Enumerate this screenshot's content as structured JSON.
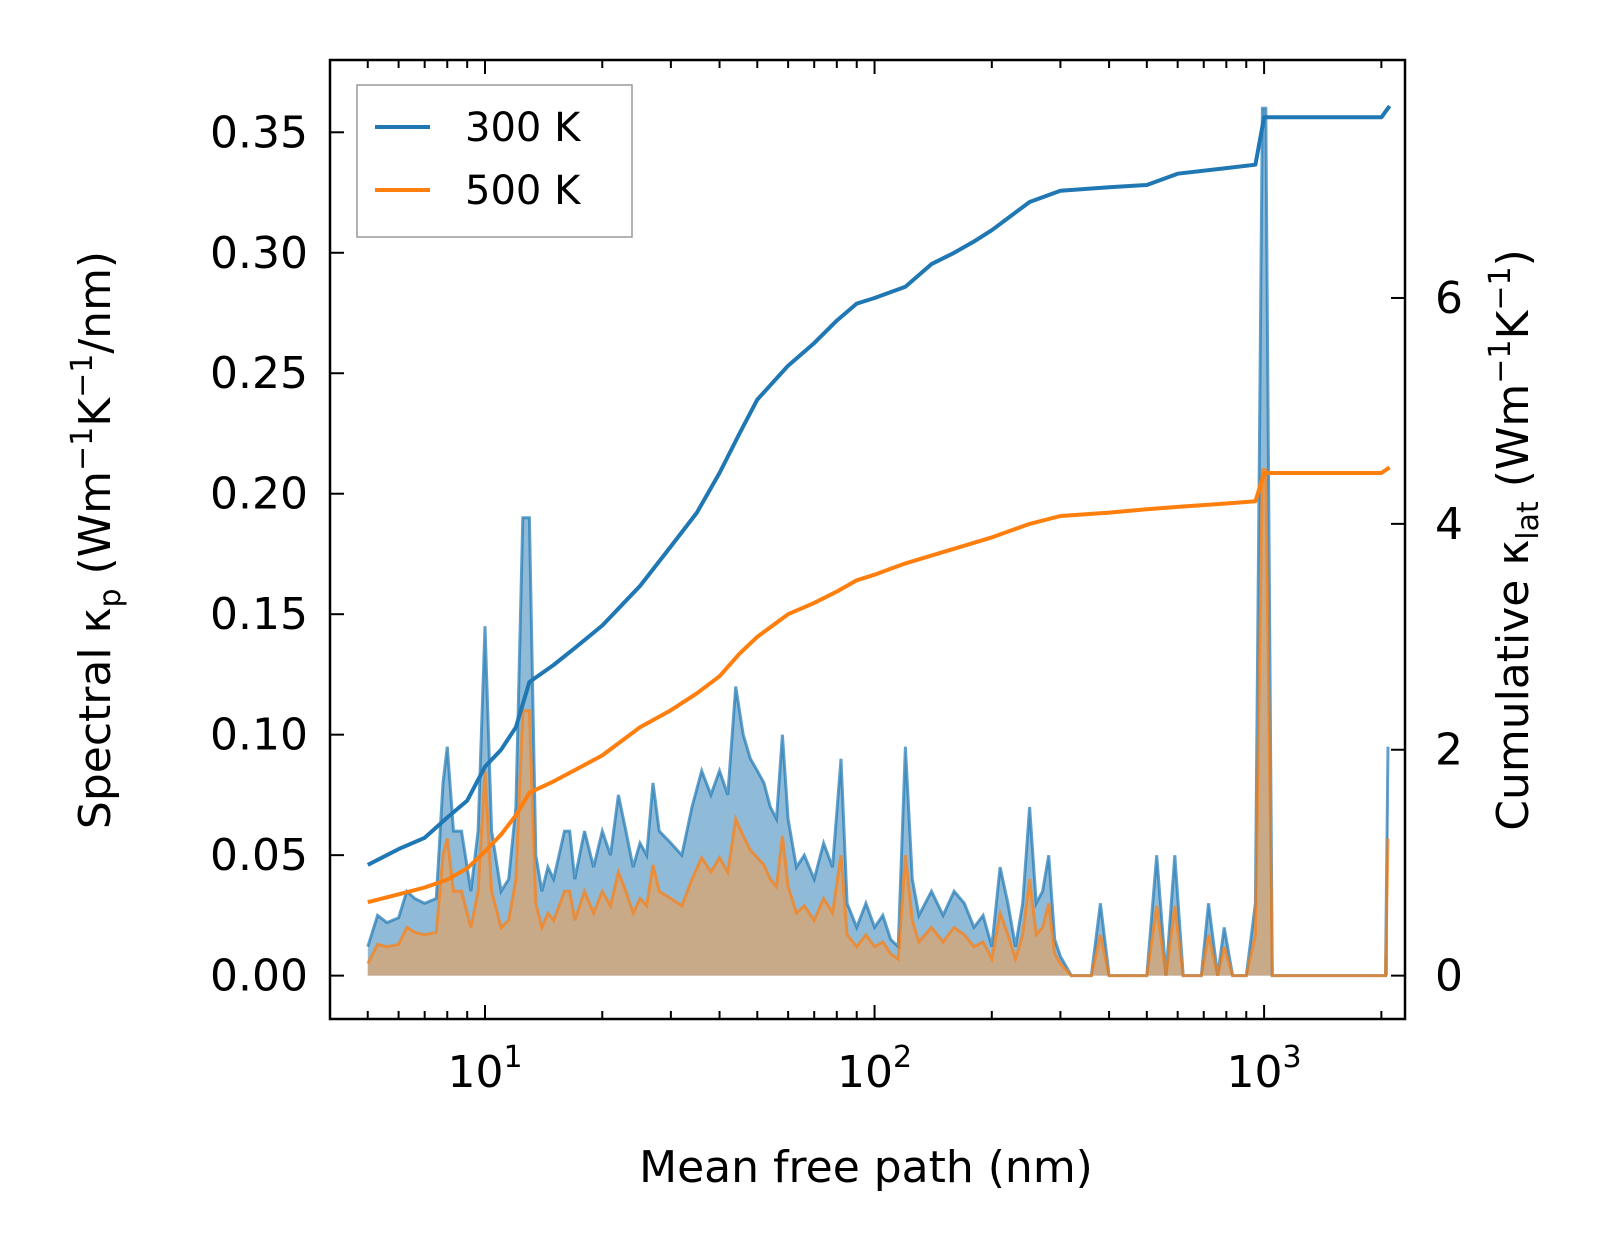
{
  "chart_data": {
    "type": "line",
    "xscale": "log",
    "xlabel": "Mean free path (nm)",
    "ylabel_left": "Spectral κ",
    "ylabel_left_sub": "p",
    "ylabel_left_units": " (Wm",
    "ylabel_left_units_mid": "K",
    "ylabel_left_units_end": "/nm)",
    "ylabel_right": "Cumulative κ",
    "ylabel_right_sub": "lat",
    "ylabel_right_units": " (Wm",
    "ylabel_right_units_mid": "K",
    "ylabel_right_units_end": ")",
    "sup_minus1": "−1",
    "xlim": [
      4.0,
      2300
    ],
    "ylim_left": [
      -0.018,
      0.38
    ],
    "ylim_right": [
      -0.384,
      8.107
    ],
    "x_ticks": [
      {
        "value": 10,
        "base": "10",
        "exp": "1"
      },
      {
        "value": 100,
        "base": "10",
        "exp": "2"
      },
      {
        "value": 1000,
        "base": "10",
        "exp": "3"
      }
    ],
    "y_ticks_left": [
      {
        "value": 0.0,
        "label": "0.00"
      },
      {
        "value": 0.05,
        "label": "0.05"
      },
      {
        "value": 0.1,
        "label": "0.10"
      },
      {
        "value": 0.15,
        "label": "0.15"
      },
      {
        "value": 0.2,
        "label": "0.20"
      },
      {
        "value": 0.25,
        "label": "0.25"
      },
      {
        "value": 0.3,
        "label": "0.30"
      },
      {
        "value": 0.35,
        "label": "0.35"
      }
    ],
    "y_ticks_right": [
      {
        "value": 0,
        "label": "0"
      },
      {
        "value": 2,
        "label": "2"
      },
      {
        "value": 4,
        "label": "4"
      },
      {
        "value": 6,
        "label": "6"
      }
    ],
    "legend": {
      "location": "upper-left"
    },
    "series_cumulative": [
      {
        "name": "300 K",
        "color": "#1f77b4",
        "axis": "right",
        "points": [
          [
            5,
            0.98
          ],
          [
            6,
            1.12
          ],
          [
            7,
            1.22
          ],
          [
            8,
            1.4
          ],
          [
            9,
            1.55
          ],
          [
            10,
            1.85
          ],
          [
            11,
            2.0
          ],
          [
            12,
            2.2
          ],
          [
            13,
            2.6
          ],
          [
            15,
            2.75
          ],
          [
            17,
            2.9
          ],
          [
            20,
            3.1
          ],
          [
            25,
            3.45
          ],
          [
            30,
            3.8
          ],
          [
            35,
            4.1
          ],
          [
            40,
            4.45
          ],
          [
            45,
            4.8
          ],
          [
            50,
            5.1
          ],
          [
            60,
            5.4
          ],
          [
            70,
            5.6
          ],
          [
            80,
            5.8
          ],
          [
            90,
            5.95
          ],
          [
            100,
            6.0
          ],
          [
            120,
            6.1
          ],
          [
            140,
            6.3
          ],
          [
            160,
            6.4
          ],
          [
            180,
            6.5
          ],
          [
            200,
            6.6
          ],
          [
            250,
            6.85
          ],
          [
            300,
            6.95
          ],
          [
            400,
            6.98
          ],
          [
            500,
            7.0
          ],
          [
            600,
            7.1
          ],
          [
            800,
            7.15
          ],
          [
            950,
            7.18
          ],
          [
            1000,
            7.6
          ],
          [
            1500,
            7.6
          ],
          [
            2000,
            7.6
          ],
          [
            2100,
            7.7
          ]
        ]
      },
      {
        "name": "500 K",
        "color": "#ff7f0e",
        "axis": "right",
        "points": [
          [
            5,
            0.65
          ],
          [
            6,
            0.72
          ],
          [
            7,
            0.78
          ],
          [
            8,
            0.85
          ],
          [
            9,
            0.95
          ],
          [
            10,
            1.1
          ],
          [
            11,
            1.25
          ],
          [
            12,
            1.42
          ],
          [
            13,
            1.62
          ],
          [
            15,
            1.72
          ],
          [
            17,
            1.82
          ],
          [
            20,
            1.95
          ],
          [
            25,
            2.2
          ],
          [
            30,
            2.35
          ],
          [
            35,
            2.5
          ],
          [
            40,
            2.65
          ],
          [
            45,
            2.85
          ],
          [
            50,
            3.0
          ],
          [
            60,
            3.2
          ],
          [
            70,
            3.3
          ],
          [
            80,
            3.4
          ],
          [
            90,
            3.5
          ],
          [
            100,
            3.55
          ],
          [
            120,
            3.65
          ],
          [
            150,
            3.75
          ],
          [
            200,
            3.88
          ],
          [
            250,
            4.0
          ],
          [
            300,
            4.07
          ],
          [
            400,
            4.1
          ],
          [
            500,
            4.13
          ],
          [
            600,
            4.15
          ],
          [
            800,
            4.18
          ],
          [
            950,
            4.2
          ],
          [
            1000,
            4.45
          ],
          [
            1500,
            4.45
          ],
          [
            2000,
            4.45
          ],
          [
            2100,
            4.5
          ]
        ]
      }
    ],
    "series_spectral": [
      {
        "name": "300 K spectral",
        "color": "#1f77b4",
        "axis": "left",
        "points": [
          [
            5,
            0.012
          ],
          [
            5.3,
            0.025
          ],
          [
            5.6,
            0.022
          ],
          [
            6,
            0.024
          ],
          [
            6.3,
            0.035
          ],
          [
            6.6,
            0.032
          ],
          [
            7,
            0.03
          ],
          [
            7.5,
            0.032
          ],
          [
            7.8,
            0.08
          ],
          [
            8,
            0.095
          ],
          [
            8.3,
            0.06
          ],
          [
            8.7,
            0.06
          ],
          [
            9.2,
            0.035
          ],
          [
            9.6,
            0.06
          ],
          [
            10,
            0.145
          ],
          [
            10.4,
            0.06
          ],
          [
            11,
            0.035
          ],
          [
            11.5,
            0.04
          ],
          [
            12,
            0.07
          ],
          [
            12.5,
            0.19
          ],
          [
            13,
            0.19
          ],
          [
            13.5,
            0.05
          ],
          [
            14,
            0.035
          ],
          [
            14.5,
            0.045
          ],
          [
            15,
            0.04
          ],
          [
            16,
            0.06
          ],
          [
            16.5,
            0.06
          ],
          [
            17,
            0.04
          ],
          [
            18,
            0.06
          ],
          [
            19,
            0.045
          ],
          [
            20,
            0.06
          ],
          [
            21,
            0.05
          ],
          [
            22,
            0.075
          ],
          [
            23,
            0.06
          ],
          [
            24,
            0.045
          ],
          [
            25,
            0.055
          ],
          [
            26,
            0.05
          ],
          [
            27,
            0.08
          ],
          [
            28,
            0.06
          ],
          [
            30,
            0.055
          ],
          [
            32,
            0.05
          ],
          [
            34,
            0.07
          ],
          [
            36,
            0.085
          ],
          [
            38,
            0.075
          ],
          [
            40,
            0.085
          ],
          [
            42,
            0.075
          ],
          [
            44,
            0.12
          ],
          [
            46,
            0.1
          ],
          [
            48,
            0.09
          ],
          [
            50,
            0.085
          ],
          [
            52,
            0.08
          ],
          [
            54,
            0.07
          ],
          [
            56,
            0.065
          ],
          [
            58,
            0.1
          ],
          [
            60,
            0.065
          ],
          [
            63,
            0.045
          ],
          [
            66,
            0.05
          ],
          [
            70,
            0.04
          ],
          [
            74,
            0.055
          ],
          [
            78,
            0.045
          ],
          [
            82,
            0.09
          ],
          [
            85,
            0.03
          ],
          [
            90,
            0.02
          ],
          [
            95,
            0.03
          ],
          [
            100,
            0.02
          ],
          [
            105,
            0.025
          ],
          [
            110,
            0.015
          ],
          [
            115,
            0.012
          ],
          [
            120,
            0.095
          ],
          [
            125,
            0.04
          ],
          [
            130,
            0.025
          ],
          [
            140,
            0.035
          ],
          [
            150,
            0.025
          ],
          [
            160,
            0.035
          ],
          [
            170,
            0.03
          ],
          [
            180,
            0.02
          ],
          [
            190,
            0.025
          ],
          [
            200,
            0.012
          ],
          [
            210,
            0.045
          ],
          [
            220,
            0.03
          ],
          [
            230,
            0.012
          ],
          [
            240,
            0.03
          ],
          [
            250,
            0.07
          ],
          [
            260,
            0.03
          ],
          [
            270,
            0.035
          ],
          [
            280,
            0.05
          ],
          [
            290,
            0.015
          ],
          [
            300,
            0.008
          ],
          [
            320,
            0.0
          ],
          [
            360,
            0.0
          ],
          [
            380,
            0.03
          ],
          [
            400,
            0.0
          ],
          [
            500,
            0.0
          ],
          [
            530,
            0.05
          ],
          [
            560,
            0.0
          ],
          [
            590,
            0.05
          ],
          [
            620,
            0.0
          ],
          [
            690,
            0.0
          ],
          [
            720,
            0.03
          ],
          [
            760,
            0.0
          ],
          [
            790,
            0.02
          ],
          [
            830,
            0.0
          ],
          [
            900,
            0.0
          ],
          [
            950,
            0.03
          ],
          [
            990,
            0.36
          ],
          [
            1010,
            0.36
          ],
          [
            1050,
            0.0
          ],
          [
            1200,
            0.0
          ],
          [
            1900,
            0.0
          ],
          [
            2050,
            0.0
          ],
          [
            2080,
            0.095
          ]
        ]
      },
      {
        "name": "500 K spectral",
        "color": "#ff7f0e",
        "axis": "left",
        "points": [
          [
            5,
            0.005
          ],
          [
            5.3,
            0.013
          ],
          [
            5.6,
            0.012
          ],
          [
            6,
            0.013
          ],
          [
            6.3,
            0.02
          ],
          [
            6.6,
            0.018
          ],
          [
            7,
            0.017
          ],
          [
            7.5,
            0.018
          ],
          [
            7.8,
            0.05
          ],
          [
            8,
            0.057
          ],
          [
            8.3,
            0.035
          ],
          [
            8.7,
            0.035
          ],
          [
            9.2,
            0.02
          ],
          [
            9.6,
            0.035
          ],
          [
            10,
            0.085
          ],
          [
            10.4,
            0.035
          ],
          [
            11,
            0.02
          ],
          [
            11.5,
            0.023
          ],
          [
            12,
            0.04
          ],
          [
            12.5,
            0.11
          ],
          [
            13,
            0.11
          ],
          [
            13.5,
            0.03
          ],
          [
            14,
            0.02
          ],
          [
            14.5,
            0.026
          ],
          [
            15,
            0.023
          ],
          [
            16,
            0.035
          ],
          [
            16.5,
            0.035
          ],
          [
            17,
            0.023
          ],
          [
            18,
            0.035
          ],
          [
            19,
            0.026
          ],
          [
            20,
            0.035
          ],
          [
            21,
            0.029
          ],
          [
            22,
            0.043
          ],
          [
            23,
            0.035
          ],
          [
            24,
            0.026
          ],
          [
            25,
            0.032
          ],
          [
            26,
            0.029
          ],
          [
            27,
            0.046
          ],
          [
            28,
            0.035
          ],
          [
            30,
            0.032
          ],
          [
            32,
            0.029
          ],
          [
            34,
            0.04
          ],
          [
            36,
            0.049
          ],
          [
            38,
            0.043
          ],
          [
            40,
            0.049
          ],
          [
            42,
            0.043
          ],
          [
            44,
            0.065
          ],
          [
            46,
            0.058
          ],
          [
            48,
            0.052
          ],
          [
            50,
            0.049
          ],
          [
            52,
            0.046
          ],
          [
            54,
            0.04
          ],
          [
            56,
            0.037
          ],
          [
            58,
            0.058
          ],
          [
            60,
            0.037
          ],
          [
            63,
            0.026
          ],
          [
            66,
            0.029
          ],
          [
            70,
            0.023
          ],
          [
            74,
            0.032
          ],
          [
            78,
            0.026
          ],
          [
            82,
            0.05
          ],
          [
            85,
            0.017
          ],
          [
            90,
            0.012
          ],
          [
            95,
            0.017
          ],
          [
            100,
            0.012
          ],
          [
            105,
            0.014
          ],
          [
            110,
            0.009
          ],
          [
            115,
            0.007
          ],
          [
            120,
            0.05
          ],
          [
            125,
            0.023
          ],
          [
            130,
            0.014
          ],
          [
            140,
            0.02
          ],
          [
            150,
            0.014
          ],
          [
            160,
            0.02
          ],
          [
            170,
            0.017
          ],
          [
            180,
            0.012
          ],
          [
            190,
            0.014
          ],
          [
            200,
            0.007
          ],
          [
            210,
            0.026
          ],
          [
            220,
            0.017
          ],
          [
            230,
            0.007
          ],
          [
            240,
            0.017
          ],
          [
            250,
            0.04
          ],
          [
            260,
            0.017
          ],
          [
            270,
            0.02
          ],
          [
            280,
            0.03
          ],
          [
            290,
            0.009
          ],
          [
            300,
            0.005
          ],
          [
            320,
            0.0
          ],
          [
            360,
            0.0
          ],
          [
            380,
            0.017
          ],
          [
            400,
            0.0
          ],
          [
            500,
            0.0
          ],
          [
            530,
            0.029
          ],
          [
            560,
            0.0
          ],
          [
            590,
            0.029
          ],
          [
            620,
            0.0
          ],
          [
            690,
            0.0
          ],
          [
            720,
            0.017
          ],
          [
            760,
            0.0
          ],
          [
            790,
            0.012
          ],
          [
            830,
            0.0
          ],
          [
            900,
            0.0
          ],
          [
            950,
            0.017
          ],
          [
            990,
            0.21
          ],
          [
            1010,
            0.21
          ],
          [
            1050,
            0.0
          ],
          [
            1200,
            0.0
          ],
          [
            1900,
            0.0
          ],
          [
            2050,
            0.0
          ],
          [
            2080,
            0.057
          ]
        ]
      }
    ]
  }
}
